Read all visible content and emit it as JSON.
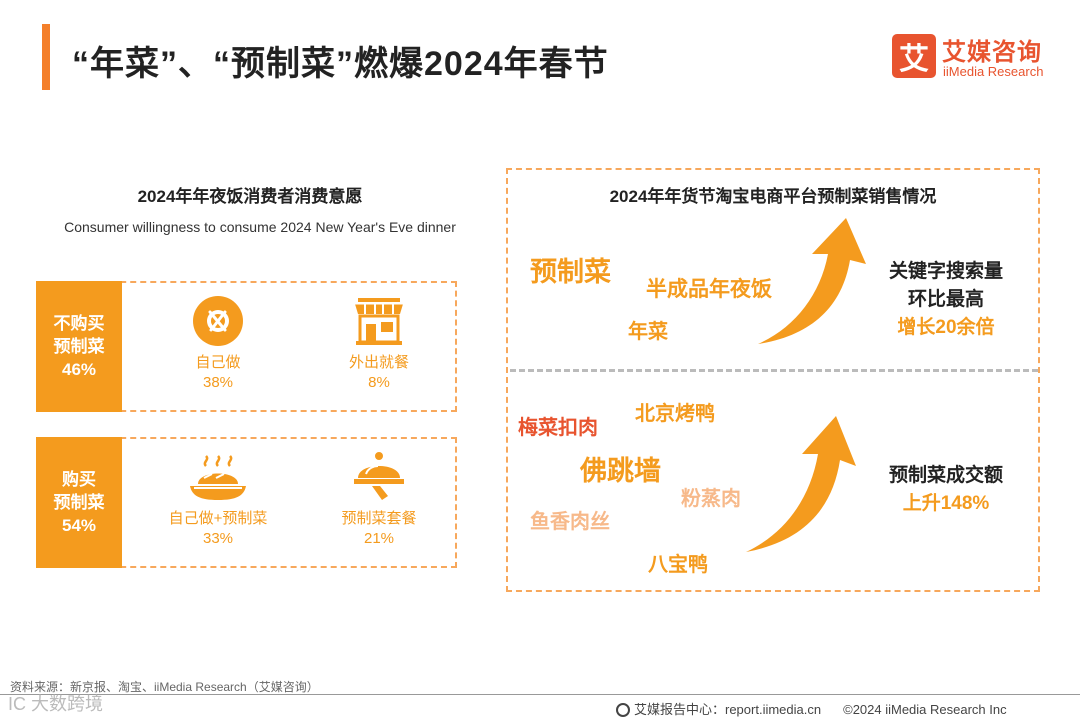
{
  "header": {
    "title": "“年菜”、“预制菜”燃爆2024年春节",
    "logo_icon_char": "艾",
    "logo_cn": "艾媒咨询",
    "logo_en": "iiMedia Research"
  },
  "left": {
    "title": "2024年年夜饭消费者消费意愿",
    "subtitle": "Consumer willingness to consume 2024 New Year's Eve dinner",
    "groups": [
      {
        "tag_line1": "不购买",
        "tag_line2": "预制菜",
        "tag_pct": "46%",
        "items": [
          {
            "label": "自己做",
            "pct": "38%",
            "icon": "fork-knife-icon"
          },
          {
            "label": "外出就餐",
            "pct": "8%",
            "icon": "storefront-icon"
          }
        ]
      },
      {
        "tag_line1": "购买",
        "tag_line2": "预制菜",
        "tag_pct": "54%",
        "items": [
          {
            "label": "自己做+预制菜",
            "pct": "33%",
            "icon": "hot-dish-icon"
          },
          {
            "label": "预制菜套餐",
            "pct": "21%",
            "icon": "cloche-icon"
          }
        ]
      }
    ]
  },
  "right": {
    "title": "2024年年货节淘宝电商平台预制菜销售情况",
    "top_keywords": [
      "预制菜",
      "半成品年夜饭",
      "年菜"
    ],
    "top_text": [
      "关键字搜索量",
      "环比最高",
      "增长20余倍"
    ],
    "bottom_keywords": [
      "梅菜扣肉",
      "北京烤鸭",
      "佛跳墙",
      "粉蒸肉",
      "鱼香肉丝",
      "八宝鸭"
    ],
    "bottom_text": [
      "预制菜成交额",
      "上升148%"
    ]
  },
  "colors": {
    "accent": "#f49b1e",
    "logo": "#e8542f",
    "light_accent": "#f7b98a"
  },
  "chart_data": {
    "type": "table",
    "title": "2024年年夜饭消费者消费意愿",
    "categories": [
      "不购买预制菜",
      "购买预制菜"
    ],
    "values": [
      46,
      54
    ],
    "series": [
      {
        "name": "不购买预制菜",
        "labels": [
          "自己做",
          "外出就餐"
        ],
        "values": [
          38,
          8
        ]
      },
      {
        "name": "购买预制菜",
        "labels": [
          "自己做+预制菜",
          "预制菜套餐"
        ],
        "values": [
          33,
          21
        ]
      }
    ]
  },
  "footer": {
    "source": "资料来源：新京报、淘宝、iiMedia Research（艾媒咨询）",
    "center": "艾媒报告中心：report.iimedia.cn",
    "copyright": "©2024  iiMedia Research  Inc",
    "watermark": "IC 大数跨境"
  }
}
